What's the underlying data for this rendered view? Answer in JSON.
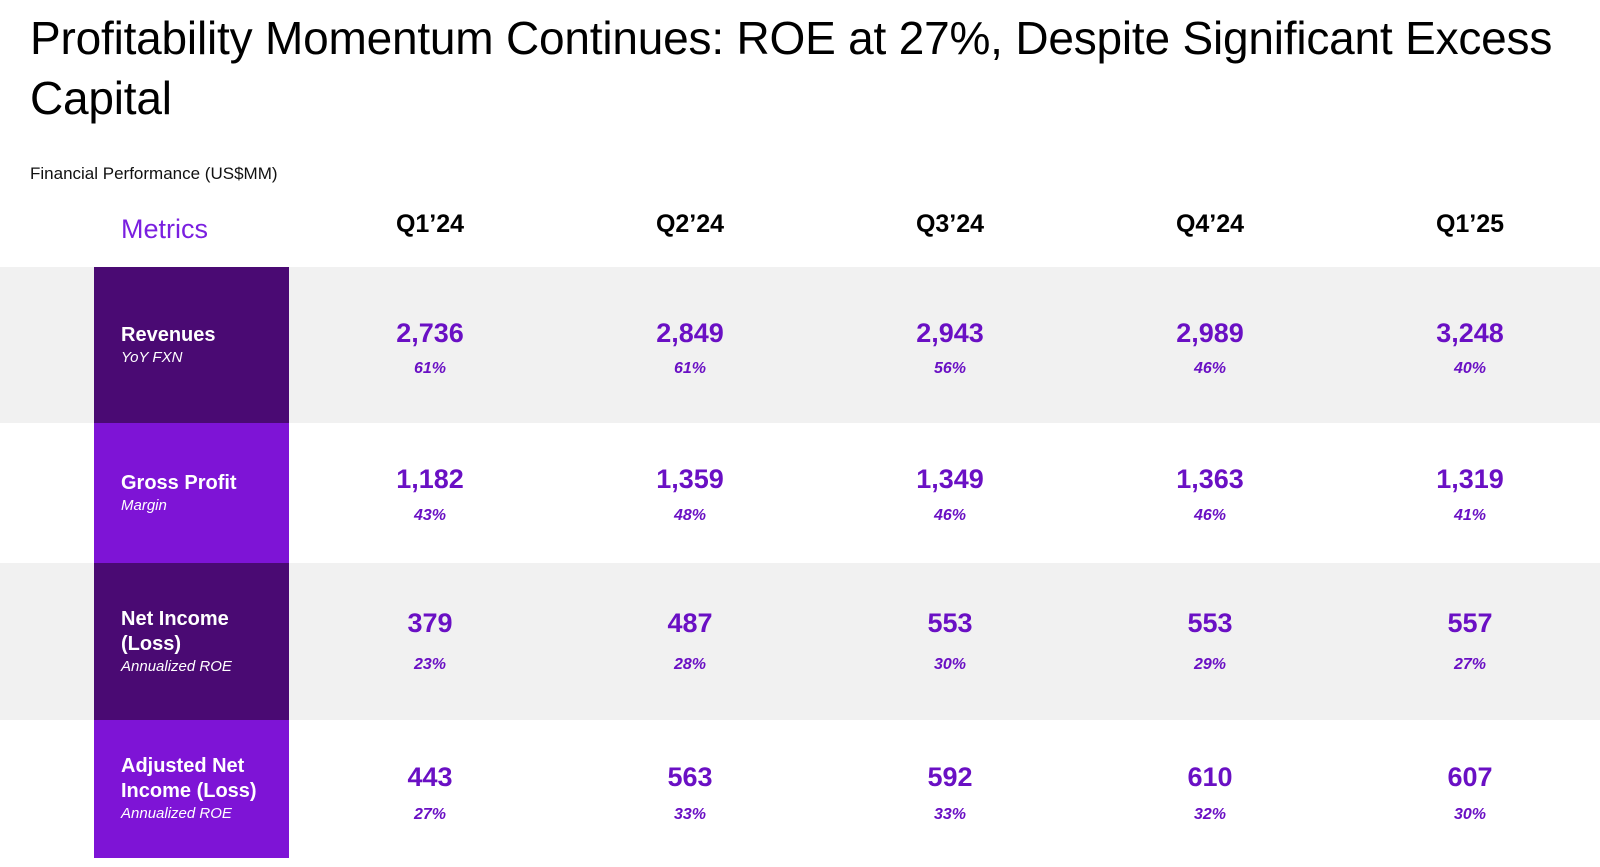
{
  "title": "Profitability Momentum Continues: ROE at 27%, Despite Significant Excess Capital",
  "subtitle": "Financial Performance (US$MM)",
  "metrics_header": "Metrics",
  "quarters": [
    "Q1’24",
    "Q2’24",
    "Q3’24",
    "Q4’24",
    "Q1’25"
  ],
  "rows": [
    {
      "label": "Revenues",
      "sublabel": "YoY FXN",
      "values": [
        "2,736",
        "2,849",
        "2,943",
        "2,989",
        "3,248"
      ],
      "percents": [
        "61%",
        "61%",
        "56%",
        "46%",
        "40%"
      ]
    },
    {
      "label": "Gross Profit",
      "sublabel": "Margin",
      "values": [
        "1,182",
        "1,359",
        "1,349",
        "1,363",
        "1,319"
      ],
      "percents": [
        "43%",
        "48%",
        "46%",
        "46%",
        "41%"
      ]
    },
    {
      "label": "Net Income (Loss)",
      "sublabel": "Annualized ROE",
      "values": [
        "379",
        "487",
        "553",
        "553",
        "557"
      ],
      "percents": [
        "23%",
        "28%",
        "30%",
        "29%",
        "27%"
      ]
    },
    {
      "label": "Adjusted Net Income (Loss)",
      "sublabel": "Annualized ROE",
      "values": [
        "443",
        "563",
        "592",
        "610",
        "607"
      ],
      "percents": [
        "27%",
        "33%",
        "33%",
        "32%",
        "30%"
      ]
    }
  ],
  "colors": {
    "accent": "#6a10c4",
    "label_dark": "#4a0a73",
    "label_bright": "#7e14d6",
    "band_gray": "#f1f1f1"
  }
}
